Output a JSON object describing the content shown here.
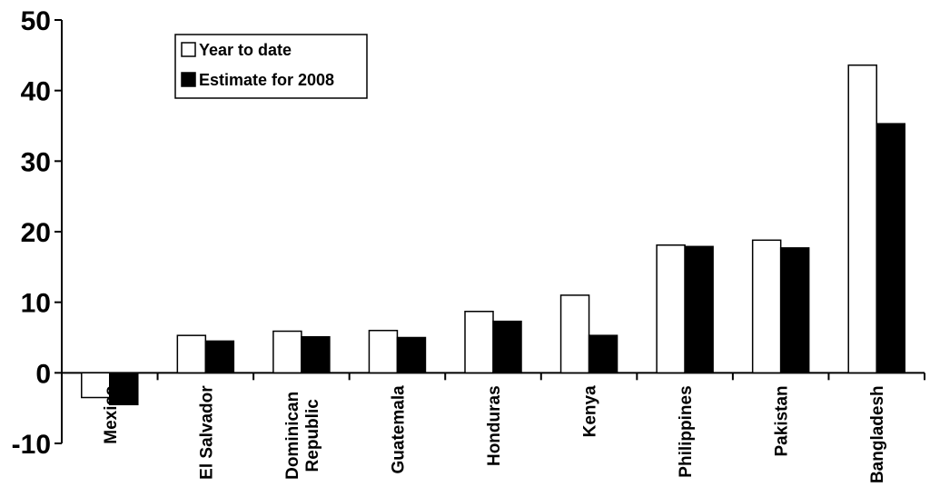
{
  "chart_data": {
    "type": "bar",
    "categories": [
      "Mexico",
      "El Salvador",
      "Dominican Republic",
      "Guatemala",
      "Honduras",
      "Kenya",
      "Philippines",
      "Pakistan",
      "Bangladesh"
    ],
    "series": [
      {
        "name": "Year to date",
        "color": "#ffffff",
        "values": [
          -3.5,
          5.3,
          5.9,
          6.0,
          8.7,
          11.0,
          18.1,
          18.8,
          43.6
        ]
      },
      {
        "name": "Estimate for 2008",
        "color": "#000000",
        "values": [
          -4.5,
          4.5,
          5.1,
          5.0,
          7.3,
          5.3,
          17.9,
          17.7,
          35.3
        ]
      }
    ],
    "ylim": [
      -10,
      50
    ],
    "yticks": [
      -10,
      0,
      10,
      20,
      30,
      40,
      50
    ],
    "title": "",
    "xlabel": "",
    "ylabel": "",
    "grid": false,
    "legend_position": "top-left"
  }
}
